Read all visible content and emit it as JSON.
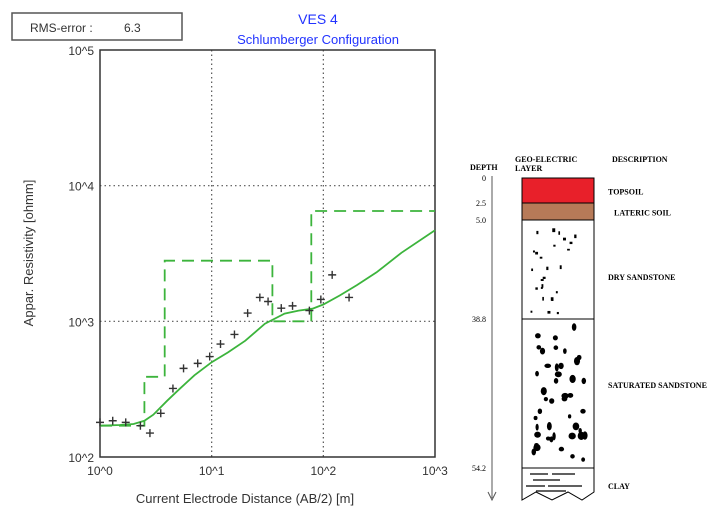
{
  "chart_data": {
    "type": "scatter",
    "rms_label": "RMS-error :",
    "rms_value": "6.3",
    "title": "VES  4",
    "subtitle": "Schlumberger Configuration",
    "xlabel": "Current Electrode Distance (AB/2) [m]",
    "ylabel": "Appar. Resistivity [ohmm]",
    "x_scale": "log",
    "y_scale": "log",
    "xlim": [
      1,
      1000
    ],
    "ylim": [
      100,
      100000
    ],
    "x_ticks": [
      "10^0",
      "10^1",
      "10^2",
      "10^3"
    ],
    "y_ticks": [
      "10^2",
      "10^3",
      "10^4",
      "10^5"
    ],
    "grid": true,
    "series": [
      {
        "kind": "observed",
        "marker": "+",
        "x": [
          1.0,
          1.3,
          1.7,
          2.3,
          2.8,
          3.5,
          4.5,
          5.6,
          7.5,
          9.6,
          12,
          16,
          21,
          27,
          32,
          42,
          53,
          75,
          95,
          120,
          170
        ],
        "y": [
          180,
          185,
          180,
          170,
          150,
          210,
          320,
          450,
          490,
          550,
          680,
          800,
          1150,
          1500,
          1400,
          1250,
          1300,
          1200,
          1450,
          2200,
          1500
        ]
      },
      {
        "kind": "calculated",
        "style": "solid",
        "x": [
          1,
          1.5,
          2,
          2.5,
          3,
          4,
          5,
          7,
          10,
          14,
          20,
          30,
          45,
          60,
          80,
          100,
          140,
          200,
          300,
          500,
          1000
        ],
        "y": [
          170,
          172,
          175,
          185,
          205,
          260,
          310,
          400,
          500,
          590,
          720,
          960,
          1140,
          1200,
          1240,
          1330,
          1550,
          1850,
          2300,
          3200,
          4700
        ]
      },
      {
        "kind": "layer model",
        "style": "dashed",
        "x": [
          1,
          2.5,
          2.5,
          3.8,
          3.8,
          35,
          35,
          78,
          78,
          1000
        ],
        "y": [
          170,
          170,
          390,
          390,
          2800,
          2800,
          1000,
          1000,
          6500,
          6500
        ]
      }
    ]
  },
  "colors": {
    "observed": "#333333",
    "calculated": "#3cb43c",
    "model": "#3cb43c",
    "grid": "#555555",
    "title": "#2233ff",
    "topsoil": "#e8202a",
    "lateric": "#b77a58"
  },
  "lithology": {
    "headers": {
      "depth": "DEPTH",
      "layer_1": "GEO-ELECTRIC",
      "layer_2": "LAYER",
      "description": "DESCRIPTION"
    },
    "layers": [
      {
        "top": 0,
        "bottom": 2.5,
        "top_label": "0",
        "name": "TOPSOIL",
        "fill": "topsoil",
        "dots": ""
      },
      {
        "top": 2.5,
        "bottom": 5.0,
        "top_label": "2.5",
        "name": "LATERIC SOIL",
        "fill": "lateric",
        "dots": ""
      },
      {
        "top": 5.0,
        "bottom": 38.8,
        "top_label": "5.0",
        "name": "DRY SANDSTONE",
        "fill": "white",
        "dots": "small"
      },
      {
        "top": 38.8,
        "bottom": 54.2,
        "top_label": "38.8",
        "name": "SATURATED SANDSTONE",
        "fill": "white",
        "dots": "large"
      },
      {
        "top": 54.2,
        "bottom": 58,
        "top_label": "54.2",
        "name": "CLAY",
        "fill": "white",
        "dots": "clay"
      }
    ]
  }
}
